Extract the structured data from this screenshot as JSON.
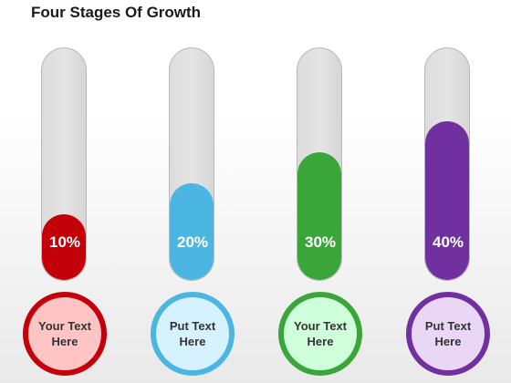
{
  "title": "Four Stages Of Growth",
  "chart_data": {
    "type": "bar",
    "categories": [
      "Your Text Here",
      "Put Text Here",
      "Your Text Here",
      "Put Text Here"
    ],
    "values": [
      10,
      20,
      30,
      40
    ],
    "value_labels": [
      "10%",
      "20%",
      "30%",
      "40%"
    ],
    "unit": "%",
    "ylim": [
      0,
      100
    ]
  },
  "stages": [
    {
      "value": 10,
      "label": "10%",
      "text": "Your Text Here",
      "fill_color": "#c3000a",
      "circle_border": "#c3000a",
      "circle_bg": "#ffc4c4"
    },
    {
      "value": 20,
      "label": "20%",
      "text": "Put Text Here",
      "fill_color": "#4ab6e1",
      "circle_border": "#4ab6e1",
      "circle_bg": "#d6f1ff"
    },
    {
      "value": 30,
      "label": "30%",
      "text": "Your Text Here",
      "fill_color": "#3aa63a",
      "circle_border": "#3aa63a",
      "circle_bg": "#cfffdb"
    },
    {
      "value": 40,
      "label": "40%",
      "text": "Put Text Here",
      "fill_color": "#7030a0",
      "circle_border": "#7030a0",
      "circle_bg": "#e9d7f5"
    }
  ]
}
